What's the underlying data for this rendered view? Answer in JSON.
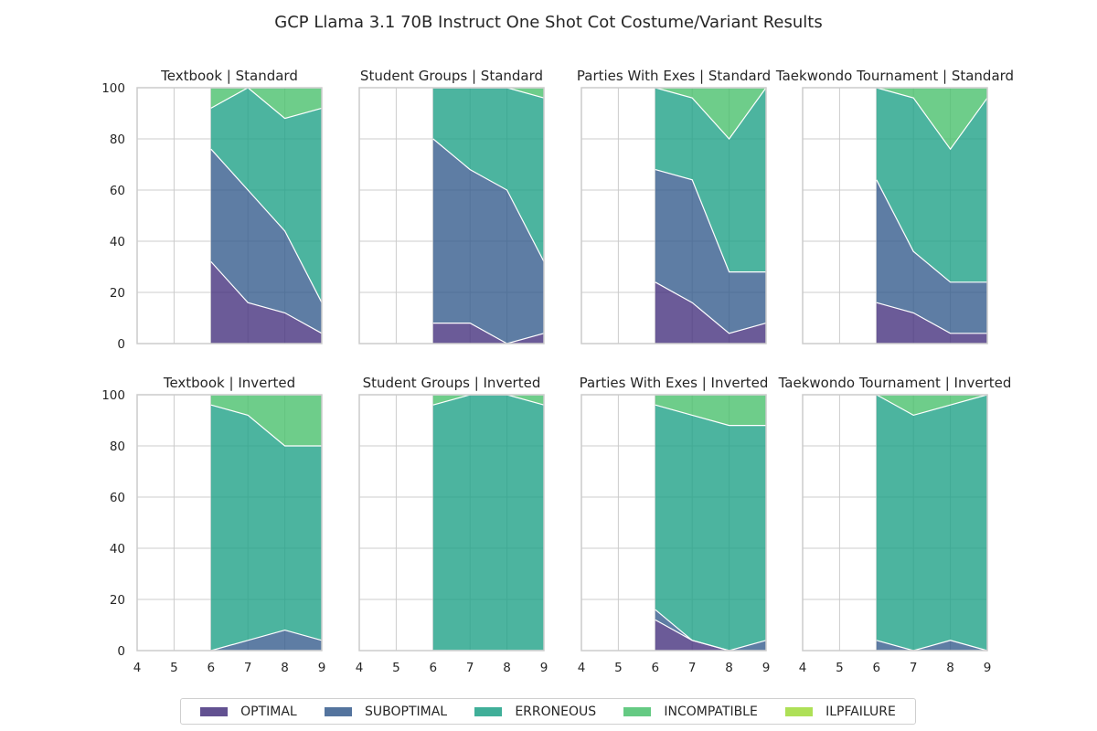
{
  "chart_data": {
    "type": "area",
    "title": "GCP Llama 3.1 70B Instruct One Shot Cot Costume/Variant Results",
    "x_ticks": [
      "4",
      "5",
      "6",
      "7",
      "8",
      "9"
    ],
    "xlim": [
      4,
      9
    ],
    "ylim": [
      0,
      100
    ],
    "y_ticks": [
      "0",
      "20",
      "40",
      "60",
      "80",
      "100"
    ],
    "x": [
      6,
      7,
      8,
      9
    ],
    "series_names": [
      "OPTIMAL",
      "SUBOPTIMAL",
      "ERRONEOUS",
      "INCOMPATIBLE",
      "ILPFAILURE"
    ],
    "colors": {
      "OPTIMAL": "#46327e",
      "SUBOPTIMAL": "#365c8d",
      "ERRONEOUS": "#1fa187",
      "INCOMPATIBLE": "#4ac16d",
      "ILPFAILURE": "#a0da39"
    },
    "panels": [
      {
        "title": "Textbook | Standard",
        "series": {
          "OPTIMAL": [
            32,
            16,
            12,
            4
          ],
          "SUBOPTIMAL": [
            44,
            44,
            32,
            12
          ],
          "ERRONEOUS": [
            16,
            40,
            44,
            76
          ],
          "INCOMPATIBLE": [
            8,
            0,
            12,
            8
          ],
          "ILPFAILURE": [
            0,
            0,
            0,
            0
          ]
        }
      },
      {
        "title": "Student Groups | Standard",
        "series": {
          "OPTIMAL": [
            8,
            8,
            0,
            4
          ],
          "SUBOPTIMAL": [
            72,
            60,
            60,
            28
          ],
          "ERRONEOUS": [
            20,
            32,
            40,
            64
          ],
          "INCOMPATIBLE": [
            0,
            0,
            0,
            4
          ],
          "ILPFAILURE": [
            0,
            0,
            0,
            0
          ]
        }
      },
      {
        "title": "Parties With Exes | Standard",
        "series": {
          "OPTIMAL": [
            24,
            16,
            4,
            8
          ],
          "SUBOPTIMAL": [
            44,
            48,
            24,
            20
          ],
          "ERRONEOUS": [
            32,
            32,
            52,
            72
          ],
          "INCOMPATIBLE": [
            0,
            4,
            20,
            0
          ],
          "ILPFAILURE": [
            0,
            0,
            0,
            0
          ]
        }
      },
      {
        "title": "Taekwondo Tournament | Standard",
        "series": {
          "OPTIMAL": [
            16,
            12,
            4,
            4
          ],
          "SUBOPTIMAL": [
            48,
            24,
            20,
            20
          ],
          "ERRONEOUS": [
            36,
            60,
            52,
            72
          ],
          "INCOMPATIBLE": [
            0,
            4,
            24,
            4
          ],
          "ILPFAILURE": [
            0,
            0,
            0,
            0
          ]
        }
      },
      {
        "title": "Textbook | Inverted",
        "series": {
          "OPTIMAL": [
            0,
            0,
            0,
            0
          ],
          "SUBOPTIMAL": [
            0,
            4,
            8,
            4
          ],
          "ERRONEOUS": [
            96,
            88,
            72,
            76
          ],
          "INCOMPATIBLE": [
            4,
            8,
            20,
            20
          ],
          "ILPFAILURE": [
            0,
            0,
            0,
            0
          ]
        }
      },
      {
        "title": "Student Groups | Inverted",
        "series": {
          "OPTIMAL": [
            0,
            0,
            0,
            0
          ],
          "SUBOPTIMAL": [
            0,
            0,
            0,
            0
          ],
          "ERRONEOUS": [
            96,
            100,
            100,
            96
          ],
          "INCOMPATIBLE": [
            4,
            0,
            0,
            4
          ],
          "ILPFAILURE": [
            0,
            0,
            0,
            0
          ]
        }
      },
      {
        "title": "Parties With Exes | Inverted",
        "series": {
          "OPTIMAL": [
            12,
            4,
            0,
            0
          ],
          "SUBOPTIMAL": [
            4,
            0,
            0,
            4
          ],
          "ERRONEOUS": [
            80,
            88,
            88,
            84
          ],
          "INCOMPATIBLE": [
            4,
            8,
            12,
            12
          ],
          "ILPFAILURE": [
            0,
            0,
            0,
            0
          ]
        }
      },
      {
        "title": "Taekwondo Tournament | Inverted",
        "series": {
          "OPTIMAL": [
            0,
            0,
            0,
            0
          ],
          "SUBOPTIMAL": [
            4,
            0,
            4,
            0
          ],
          "ERRONEOUS": [
            96,
            92,
            92,
            100
          ],
          "INCOMPATIBLE": [
            0,
            8,
            4,
            0
          ],
          "ILPFAILURE": [
            0,
            0,
            0,
            0
          ]
        }
      }
    ]
  },
  "legend": {
    "items": [
      {
        "label": "OPTIMAL"
      },
      {
        "label": "SUBOPTIMAL"
      },
      {
        "label": "ERRONEOUS"
      },
      {
        "label": "INCOMPATIBLE"
      },
      {
        "label": "ILPFAILURE"
      }
    ]
  }
}
